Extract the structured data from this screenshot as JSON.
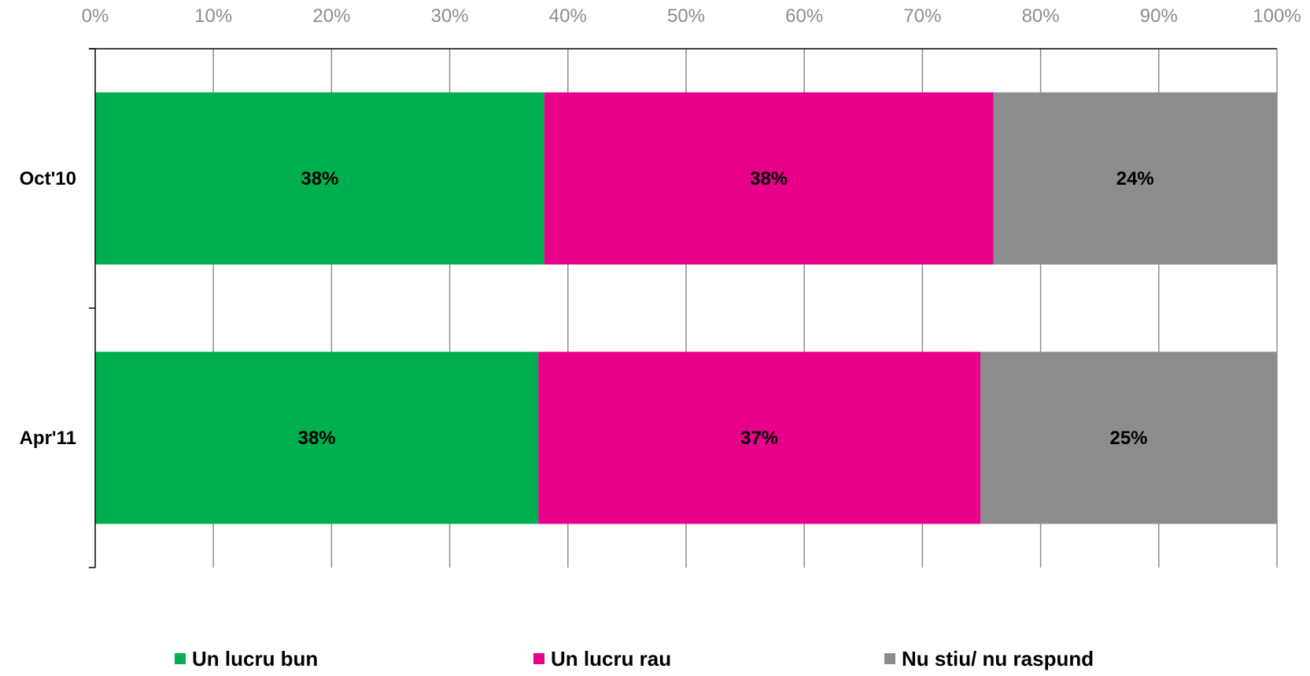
{
  "chart_data": {
    "type": "bar",
    "orientation": "horizontal",
    "stacked": "percent",
    "title": "",
    "xlabel": "",
    "ylabel": "",
    "xlim": [
      0,
      100
    ],
    "x_ticks": [
      "0%",
      "10%",
      "20%",
      "30%",
      "40%",
      "50%",
      "60%",
      "70%",
      "80%",
      "90%",
      "100%"
    ],
    "x_axis_position": "top",
    "grid": true,
    "categories": [
      "Oct'10",
      "Apr'11"
    ],
    "series": [
      {
        "name": "Un lucru bun",
        "color": "#00b050",
        "values": [
          38,
          37.5
        ],
        "labels": [
          "38%",
          "38%"
        ]
      },
      {
        "name": "Un lucru rau",
        "color": "#e6008a",
        "values": [
          38,
          37.4
        ],
        "labels": [
          "38%",
          "37%"
        ]
      },
      {
        "name": "Nu stiu/ nu raspund",
        "color": "#8c8c8c",
        "values": [
          24,
          25.1
        ],
        "labels": [
          "24%",
          "25%"
        ]
      }
    ],
    "legend_position": "bottom"
  }
}
